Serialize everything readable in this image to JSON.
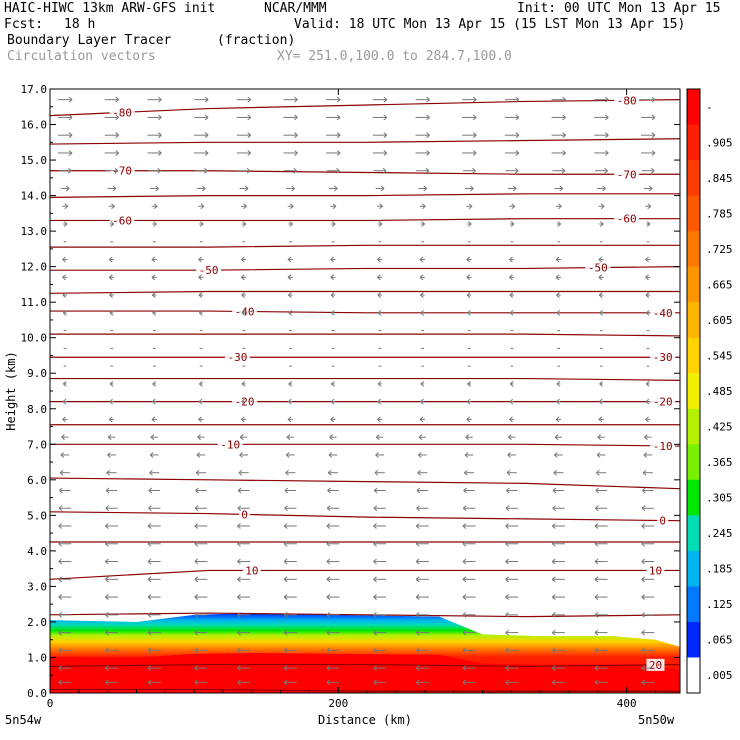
{
  "header": {
    "model": "HAIC-HIWC 13km ARW-GFS init",
    "org": "NCAR/MMM",
    "init": "Init: 00 UTC Mon 13 Apr 15",
    "fcst_label": "Fcst:",
    "fcst_value": "18 h",
    "valid": "Valid: 18 UTC Mon 13 Apr 15 (15 LST Mon 13 Apr 15)",
    "field": "Boundary Layer Tracer",
    "field_units": "(fraction)",
    "vectors": "Circulation vectors",
    "xy": "XY= 251.0,100.0 to 284.7,100.0"
  },
  "chart_data": {
    "type": "cross-section",
    "xlabel": "Distance (km)",
    "ylabel": "Height (km)",
    "xlim": [
      0,
      437
    ],
    "ylim": [
      0.0,
      17.0
    ],
    "x_ticks": [
      0,
      200,
      400
    ],
    "x_tick_labels": [
      "0",
      "200",
      "400"
    ],
    "y_ticks": [
      0,
      1,
      2,
      3,
      4,
      5,
      6,
      7,
      8,
      9,
      10,
      11,
      12,
      13,
      14,
      15,
      16,
      17
    ],
    "y_tick_labels": [
      "0.0",
      "1.0",
      "2.0",
      "3.0",
      "4.0",
      "5.0",
      "6.0",
      "7.0",
      "8.0",
      "9.0",
      "10.0",
      "11.0",
      "12.0",
      "13.0",
      "14.0",
      "15.0",
      "16.0",
      "17.0"
    ],
    "endpoint_labels": {
      "left": "5n54w",
      "right": "5n50w"
    },
    "colorbar": {
      "labels": [
        "-",
        ".905",
        ".845",
        ".785",
        ".725",
        ".665",
        ".605",
        ".545",
        ".485",
        ".425",
        ".365",
        ".305",
        ".245",
        ".185",
        ".125",
        ".065",
        ".005"
      ],
      "colors": [
        "#ff0000",
        "#ff1e00",
        "#ff3c00",
        "#ff5a00",
        "#ff7800",
        "#ff9600",
        "#ffb400",
        "#ffd200",
        "#f0f000",
        "#b4f000",
        "#78f000",
        "#00e600",
        "#00dcb4",
        "#00b4f0",
        "#0078ff",
        "#0028ff",
        "#ffffff"
      ]
    },
    "tracer_top_km": {
      "x": [
        0,
        60,
        100,
        140,
        200,
        270,
        300,
        340,
        390,
        420,
        437
      ],
      "top": [
        2.05,
        2.0,
        2.2,
        2.25,
        2.2,
        2.15,
        1.65,
        1.6,
        1.6,
        1.5,
        1.3
      ]
    },
    "temperature_contours": [
      {
        "label": "-80",
        "label_x": [
          50,
          400
        ],
        "y": [
          16.25,
          16.45,
          16.55,
          16.65,
          16.7
        ]
      },
      {
        "label": "",
        "label_x": [],
        "y": [
          15.45,
          15.5,
          15.5,
          15.55,
          15.6
        ]
      },
      {
        "label": "-70",
        "label_x": [
          50,
          400
        ],
        "y": [
          14.7,
          14.7,
          14.65,
          14.6,
          14.6
        ]
      },
      {
        "label": "",
        "label_x": [],
        "y": [
          13.95,
          14.0,
          14.0,
          14.05,
          14.05
        ]
      },
      {
        "label": "-60",
        "label_x": [
          50,
          400
        ],
        "y": [
          13.3,
          13.3,
          13.3,
          13.35,
          13.35
        ]
      },
      {
        "label": "",
        "label_x": [],
        "y": [
          12.55,
          12.55,
          12.6,
          12.6,
          12.6
        ]
      },
      {
        "label": "-50",
        "label_x": [
          110,
          380
        ],
        "y": [
          11.9,
          11.9,
          11.95,
          11.95,
          12.0
        ]
      },
      {
        "label": "",
        "label_x": [],
        "y": [
          11.25,
          11.3,
          11.3,
          11.3,
          11.3
        ]
      },
      {
        "label": "-40",
        "label_x": [
          135,
          425
        ],
        "y": [
          10.75,
          10.75,
          10.7,
          10.7,
          10.7
        ]
      },
      {
        "label": "",
        "label_x": [],
        "y": [
          10.1,
          10.1,
          10.1,
          10.1,
          10.05
        ]
      },
      {
        "label": "-30",
        "label_x": [
          130,
          425
        ],
        "y": [
          9.45,
          9.45,
          9.45,
          9.45,
          9.45
        ]
      },
      {
        "label": "",
        "label_x": [],
        "y": [
          8.85,
          8.85,
          8.85,
          8.85,
          8.8
        ]
      },
      {
        "label": "-20",
        "label_x": [
          135,
          425
        ],
        "y": [
          8.2,
          8.2,
          8.2,
          8.2,
          8.2
        ]
      },
      {
        "label": "",
        "label_x": [],
        "y": [
          7.55,
          7.55,
          7.55,
          7.55,
          7.55
        ]
      },
      {
        "label": "-10",
        "label_x": [
          125,
          425
        ],
        "y": [
          7.0,
          7.0,
          7.0,
          7.0,
          6.95
        ]
      },
      {
        "label": "",
        "label_x": [],
        "y": [
          6.05,
          6.0,
          5.95,
          5.9,
          5.75
        ]
      },
      {
        "label": "0",
        "label_x": [
          135,
          425
        ],
        "y": [
          5.1,
          5.05,
          4.95,
          4.9,
          4.85
        ]
      },
      {
        "label": "",
        "label_x": [],
        "y": [
          4.25,
          4.25,
          4.25,
          4.25,
          4.25
        ]
      },
      {
        "label": "10",
        "label_x": [
          140,
          420
        ],
        "y": [
          3.2,
          3.45,
          3.45,
          3.45,
          3.45
        ]
      },
      {
        "label": "",
        "label_x": [],
        "y": [
          2.2,
          2.25,
          2.2,
          2.15,
          2.2
        ]
      },
      {
        "label": "20",
        "label_x": [
          420
        ],
        "y": [
          0.75,
          0.8,
          0.8,
          0.75,
          0.8
        ]
      },
      {
        "label": "",
        "label_x": [],
        "y": [
          0.1,
          0.1,
          0.05,
          0.05,
          0.05
        ]
      }
    ],
    "wind_vector_rows": [
      {
        "z": 16.7,
        "u": 1,
        "speed": 1.0
      },
      {
        "z": 16.2,
        "u": 1,
        "speed": 1.0
      },
      {
        "z": 15.7,
        "u": 1,
        "speed": 1.0
      },
      {
        "z": 15.2,
        "u": 1,
        "speed": 1.0
      },
      {
        "z": 14.7,
        "u": 1,
        "speed": 0.9
      },
      {
        "z": 14.2,
        "u": 1,
        "speed": 0.6
      },
      {
        "z": 13.7,
        "u": 1,
        "speed": 0.4
      },
      {
        "z": 13.2,
        "u": 1,
        "speed": 0.3
      },
      {
        "z": 12.7,
        "u": -1,
        "speed": 0.2
      },
      {
        "z": 12.2,
        "u": -1,
        "speed": 0.35
      },
      {
        "z": 11.7,
        "u": -1,
        "speed": 0.35
      },
      {
        "z": 11.2,
        "u": -1,
        "speed": 0.3
      },
      {
        "z": 10.7,
        "u": -1,
        "speed": 0.25
      },
      {
        "z": 10.2,
        "u": -1,
        "speed": 0.2
      },
      {
        "z": 9.7,
        "u": -1,
        "speed": 0.2
      },
      {
        "z": 9.2,
        "u": -1,
        "speed": 0.2
      },
      {
        "z": 8.7,
        "u": -1,
        "speed": 0.25
      },
      {
        "z": 8.2,
        "u": -1,
        "speed": 0.3
      },
      {
        "z": 7.7,
        "u": -1,
        "speed": 0.35
      },
      {
        "z": 7.2,
        "u": -1,
        "speed": 0.5
      },
      {
        "z": 6.7,
        "u": -1,
        "speed": 0.6
      },
      {
        "z": 6.2,
        "u": -1,
        "speed": 0.7
      },
      {
        "z": 5.7,
        "u": -1,
        "speed": 0.8
      },
      {
        "z": 5.2,
        "u": -1,
        "speed": 0.85
      },
      {
        "z": 4.7,
        "u": -1,
        "speed": 0.9
      },
      {
        "z": 4.2,
        "u": -1,
        "speed": 0.9
      },
      {
        "z": 3.7,
        "u": -1,
        "speed": 0.9
      },
      {
        "z": 3.2,
        "u": -1,
        "speed": 0.9
      },
      {
        "z": 2.7,
        "u": -1,
        "speed": 0.9
      },
      {
        "z": 2.2,
        "u": -1,
        "speed": 0.9
      },
      {
        "z": 1.7,
        "u": -1,
        "speed": 0.9
      },
      {
        "z": 1.2,
        "u": -1,
        "speed": 0.9
      },
      {
        "z": 0.7,
        "u": -1,
        "speed": 0.9
      },
      {
        "z": 0.3,
        "u": -1,
        "speed": 0.9
      }
    ],
    "wind_vector_columns_km": [
      0,
      31,
      62,
      93,
      124,
      155,
      186,
      217,
      248,
      279,
      310,
      341,
      372,
      403,
      432
    ]
  }
}
